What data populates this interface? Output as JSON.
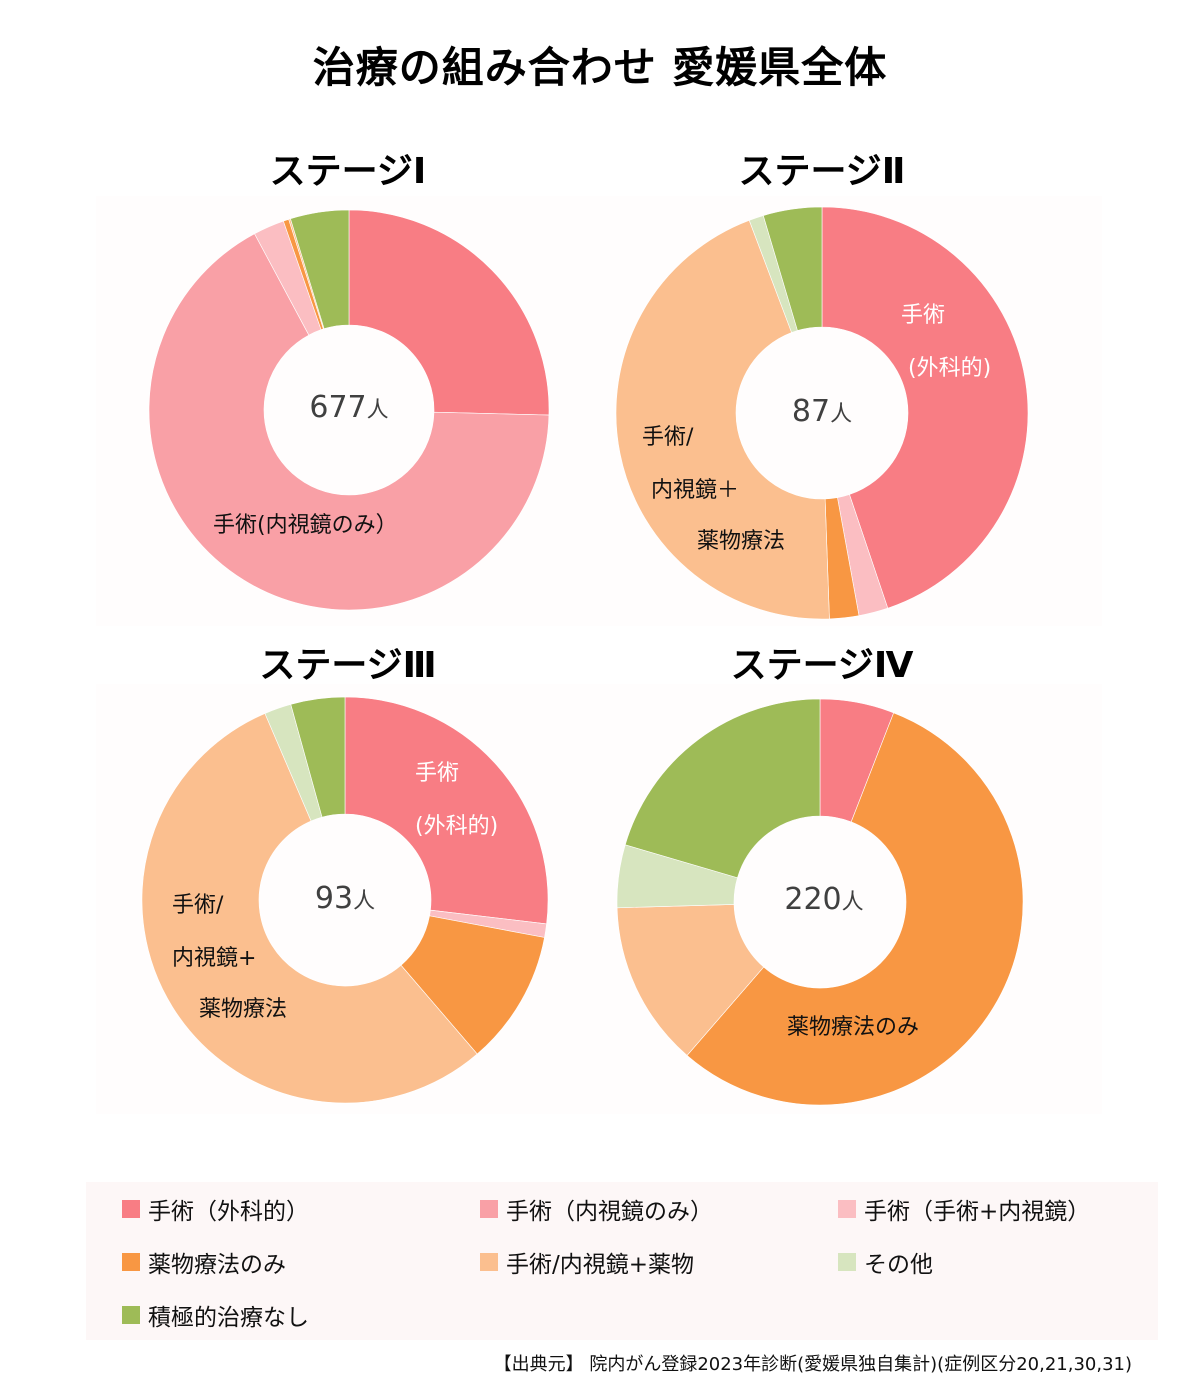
{
  "title": "治療の組み合わせ 愛媛県全体",
  "colors": {
    "surgery_open": "#F87D84",
    "surgery_endoscopic": "#F9A0A6",
    "surgery_combo": "#FBBEC2",
    "drug_only": "#F89743",
    "surgery_plus_drug": "#FBBF8F",
    "other": "#D7E5BF",
    "no_treatment": "#9EBB57"
  },
  "legend": [
    {
      "label": "手術（外科的）",
      "key": "surgery_open"
    },
    {
      "label": "手術（内視鏡のみ）",
      "key": "surgery_endoscopic"
    },
    {
      "label": "手術（手術+内視鏡）",
      "key": "surgery_combo"
    },
    {
      "label": "薬物療法のみ",
      "key": "drug_only"
    },
    {
      "label": "手術/内視鏡+薬物",
      "key": "surgery_plus_drug"
    },
    {
      "label": "その他",
      "key": "other"
    },
    {
      "label": "積極的治療なし",
      "key": "no_treatment"
    }
  ],
  "source": "【出典元】 院内がん登録2023年診断(愛媛県独自集計)(症例区分20,21,30,31)",
  "stages": [
    {
      "title": "ステージⅠ",
      "total": "677",
      "unit": "人",
      "labels": [
        {
          "text": "手術(内視鏡のみ）",
          "color": "#111111"
        }
      ]
    },
    {
      "title": "ステージⅡ",
      "total": "87",
      "unit": "人",
      "labels": [
        {
          "text": "手術",
          "color": "#ffffff"
        },
        {
          "text": "(外科的)",
          "color": "#ffffff"
        },
        {
          "text": "手術/",
          "color": "#111111"
        },
        {
          "text": "内視鏡＋",
          "color": "#111111"
        },
        {
          "text": "薬物療法",
          "color": "#111111"
        }
      ]
    },
    {
      "title": "ステージⅢ",
      "total": "93",
      "unit": "人",
      "labels": [
        {
          "text": "手術",
          "color": "#ffffff"
        },
        {
          "text": "(外科的)",
          "color": "#ffffff"
        },
        {
          "text": "手術/",
          "color": "#111111"
        },
        {
          "text": "内視鏡+",
          "color": "#111111"
        },
        {
          "text": "薬物療法",
          "color": "#111111"
        }
      ]
    },
    {
      "title": "ステージⅣ",
      "total": "220",
      "unit": "人",
      "labels": [
        {
          "text": "薬物療法のみ",
          "color": "#111111"
        }
      ]
    }
  ],
  "chart_data": [
    {
      "type": "pie",
      "title": "ステージⅠ",
      "center_label": "677人",
      "categories": [
        "手術（外科的）",
        "手術（内視鏡のみ）",
        "手術（手術+内視鏡）",
        "薬物療法のみ",
        "手術/内視鏡+薬物",
        "その他",
        "積極的治療なし"
      ],
      "values": [
        172,
        452,
        17,
        3,
        1,
        0,
        32
      ]
    },
    {
      "type": "pie",
      "title": "ステージⅡ",
      "center_label": "87人",
      "categories": [
        "手術（外科的）",
        "手術（内視鏡のみ）",
        "手術（手術+内視鏡）",
        "薬物療法のみ",
        "手術/内視鏡+薬物",
        "その他",
        "積極的治療なし"
      ],
      "values": [
        39,
        0,
        2,
        2,
        39,
        1,
        4
      ]
    },
    {
      "type": "pie",
      "title": "ステージⅢ",
      "center_label": "93人",
      "categories": [
        "手術（外科的）",
        "手術（内視鏡のみ）",
        "手術（手術+内視鏡）",
        "薬物療法のみ",
        "手術/内視鏡+薬物",
        "その他",
        "積極的治療なし"
      ],
      "values": [
        25,
        0,
        1,
        10,
        51,
        2,
        4
      ]
    },
    {
      "type": "pie",
      "title": "ステージⅣ",
      "center_label": "220人",
      "categories": [
        "手術（外科的）",
        "手術（内視鏡のみ）",
        "手術（手術+内視鏡）",
        "薬物療法のみ",
        "手術/内視鏡+薬物",
        "その他",
        "積極的治療なし"
      ],
      "values": [
        13,
        0,
        0,
        122,
        29,
        11,
        45
      ]
    }
  ]
}
